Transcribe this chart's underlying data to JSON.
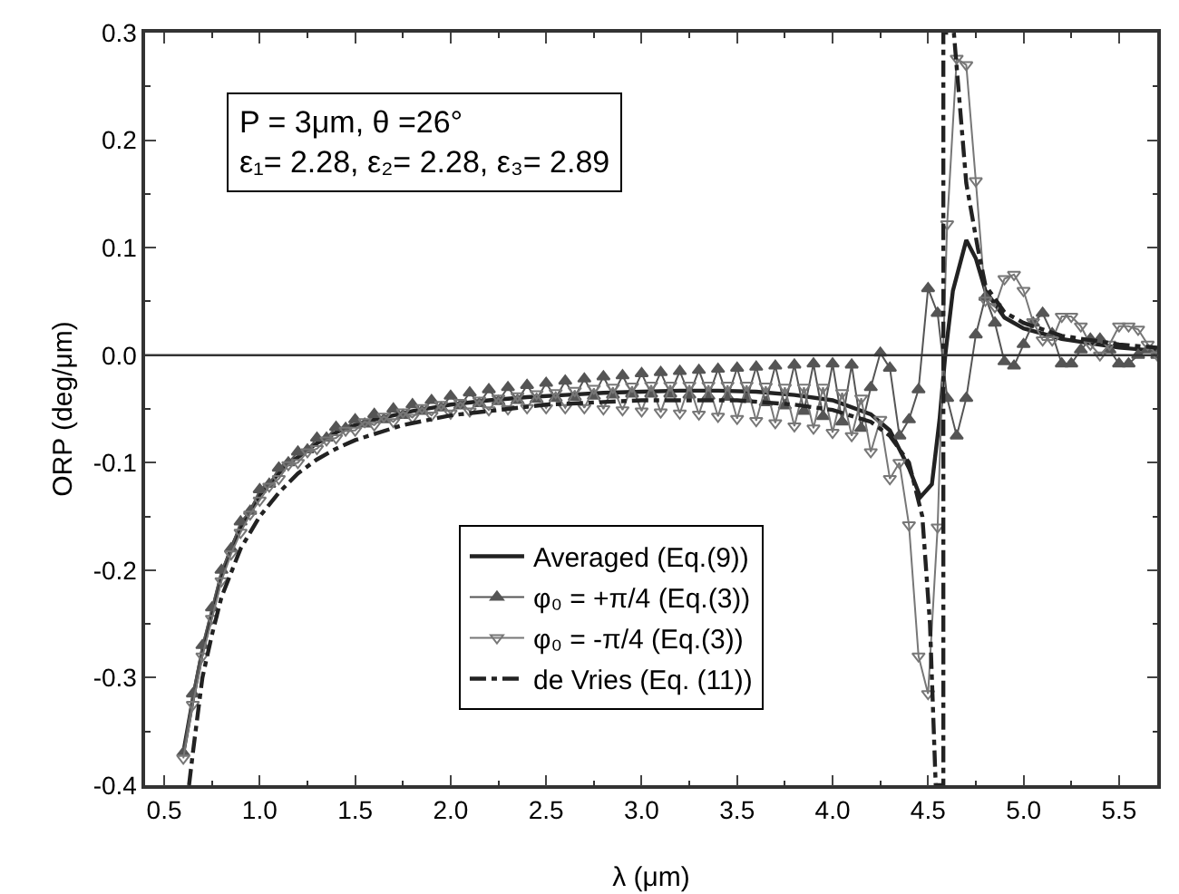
{
  "chart_data": {
    "type": "line",
    "xlabel": "λ (μm)",
    "ylabel": "ORP (deg/μm)",
    "xlim": [
      0.4,
      5.7
    ],
    "ylim": [
      -0.4,
      0.3
    ],
    "xticks": [
      {
        "value": 0.5,
        "label": "0.5"
      },
      {
        "value": 1,
        "label": "1.0"
      },
      {
        "value": 1.5,
        "label": "1.5"
      },
      {
        "value": 2,
        "label": "2.0"
      },
      {
        "value": 2.5,
        "label": "2.5"
      },
      {
        "value": 3,
        "label": "3.0"
      },
      {
        "value": 3.5,
        "label": "3.5"
      },
      {
        "value": 4,
        "label": "4.0"
      },
      {
        "value": 4.5,
        "label": "4.5"
      },
      {
        "value": 5,
        "label": "5.0"
      },
      {
        "value": 5.5,
        "label": "5.5"
      }
    ],
    "yticks": [
      {
        "value": -0.4,
        "label": "-0.4"
      },
      {
        "value": -0.3,
        "label": "-0.3"
      },
      {
        "value": -0.2,
        "label": "-0.2"
      },
      {
        "value": -0.1,
        "label": "-0.1"
      },
      {
        "value": 0,
        "label": "0.0"
      },
      {
        "value": 0.1,
        "label": "0.1"
      },
      {
        "value": 0.2,
        "label": "0.2"
      },
      {
        "value": 0.3,
        "label": "0.3"
      }
    ],
    "grid": false,
    "legend": "bottom",
    "ref_lines": [
      {
        "axis": "y",
        "value": 0,
        "label": null,
        "color": "#333333",
        "line_style": "solid"
      }
    ],
    "annotations": [
      "P = 3μm, θ =26°\nε₁= 2.28, ε₂= 2.28, ε₃= 2.89"
    ],
    "series": [
      {
        "name": "Averaged (Eq.(9))",
        "color": "#222222",
        "marker": "none",
        "line_style": "solid",
        "x": [
          0.6,
          0.65,
          0.7,
          0.75,
          0.8,
          0.85,
          0.9,
          0.95,
          1.0,
          1.05,
          1.1,
          1.15,
          1.2,
          1.25,
          1.3,
          1.35,
          1.4,
          1.45,
          1.5,
          1.6,
          1.7,
          1.8,
          1.9,
          2.0,
          2.2,
          2.4,
          2.6,
          2.8,
          3.0,
          3.2,
          3.4,
          3.6,
          3.8,
          4.0,
          4.2,
          4.3,
          4.4,
          4.46,
          4.52,
          4.56,
          4.59,
          4.63,
          4.7,
          4.75,
          4.8,
          4.9,
          5.0,
          5.2,
          5.5,
          5.7
        ],
        "values": [
          -0.37,
          -0.32,
          -0.275,
          -0.24,
          -0.205,
          -0.18,
          -0.16,
          -0.145,
          -0.13,
          -0.12,
          -0.11,
          -0.1,
          -0.095,
          -0.088,
          -0.082,
          -0.077,
          -0.072,
          -0.068,
          -0.065,
          -0.06,
          -0.056,
          -0.052,
          -0.049,
          -0.046,
          -0.042,
          -0.039,
          -0.037,
          -0.035,
          -0.034,
          -0.033,
          -0.033,
          -0.034,
          -0.037,
          -0.042,
          -0.055,
          -0.07,
          -0.105,
          -0.132,
          -0.12,
          -0.06,
          0.0,
          0.06,
          0.107,
          0.09,
          0.06,
          0.035,
          0.025,
          0.015,
          0.007,
          0.004
        ]
      },
      {
        "name": "φ₀ = +π/4 (Eq.(3))",
        "color": "#555555",
        "marker": "triangle",
        "line_style": "solid",
        "x": [
          0.6,
          0.65,
          0.7,
          0.75,
          0.8,
          0.85,
          0.9,
          0.95,
          1.0,
          1.05,
          1.1,
          1.15,
          1.2,
          1.25,
          1.3,
          1.35,
          1.4,
          1.45,
          1.5,
          1.55,
          1.6,
          1.65,
          1.7,
          1.75,
          1.8,
          1.85,
          1.9,
          1.95,
          2.0,
          2.05,
          2.1,
          2.15,
          2.2,
          2.25,
          2.3,
          2.35,
          2.4,
          2.45,
          2.5,
          2.55,
          2.6,
          2.65,
          2.7,
          2.75,
          2.8,
          2.85,
          2.9,
          2.95,
          3.0,
          3.05,
          3.1,
          3.15,
          3.2,
          3.25,
          3.3,
          3.35,
          3.4,
          3.45,
          3.5,
          3.55,
          3.6,
          3.65,
          3.7,
          3.75,
          3.8,
          3.85,
          3.9,
          3.95,
          4.0,
          4.05,
          4.1,
          4.15,
          4.2,
          4.25,
          4.3,
          4.35,
          4.4,
          4.45,
          4.5,
          4.55,
          4.6,
          4.65,
          4.7,
          4.75,
          4.8,
          4.85,
          4.9,
          4.95,
          5.0,
          5.05,
          5.1,
          5.15,
          5.2,
          5.25,
          5.3,
          5.35,
          5.4,
          5.45,
          5.5,
          5.55,
          5.6,
          5.65,
          5.7
        ],
        "values": [
          -0.37,
          -0.315,
          -0.27,
          -0.235,
          -0.2,
          -0.18,
          -0.155,
          -0.145,
          -0.125,
          -0.12,
          -0.105,
          -0.1,
          -0.09,
          -0.088,
          -0.077,
          -0.077,
          -0.067,
          -0.068,
          -0.06,
          -0.064,
          -0.055,
          -0.06,
          -0.05,
          -0.056,
          -0.046,
          -0.052,
          -0.042,
          -0.049,
          -0.038,
          -0.047,
          -0.035,
          -0.045,
          -0.032,
          -0.043,
          -0.03,
          -0.042,
          -0.028,
          -0.041,
          -0.026,
          -0.04,
          -0.024,
          -0.039,
          -0.022,
          -0.038,
          -0.02,
          -0.037,
          -0.019,
          -0.036,
          -0.017,
          -0.036,
          -0.016,
          -0.036,
          -0.015,
          -0.037,
          -0.014,
          -0.038,
          -0.013,
          -0.039,
          -0.012,
          -0.041,
          -0.011,
          -0.044,
          -0.01,
          -0.047,
          -0.009,
          -0.052,
          -0.008,
          -0.057,
          -0.008,
          -0.062,
          -0.009,
          -0.068,
          -0.03,
          0.002,
          -0.012,
          -0.075,
          -0.06,
          -0.032,
          0.062,
          0.039,
          -0.04,
          -0.075,
          -0.04,
          0.019,
          0.054,
          0.03,
          -0.006,
          -0.01,
          0.01,
          0.03,
          0.039,
          0.02,
          -0.008,
          -0.008,
          0.005,
          0.015,
          0.015,
          0.005,
          -0.008,
          -0.008,
          0.0,
          0.005,
          0.0
        ]
      },
      {
        "name": "φ₀ = -π/4 (Eq.(3))",
        "color": "#777777",
        "marker": "triangle-down",
        "line_style": "solid",
        "x": [
          0.6,
          0.65,
          0.7,
          0.75,
          0.8,
          0.85,
          0.9,
          0.95,
          1.0,
          1.05,
          1.1,
          1.15,
          1.2,
          1.25,
          1.3,
          1.35,
          1.4,
          1.45,
          1.5,
          1.55,
          1.6,
          1.65,
          1.7,
          1.75,
          1.8,
          1.85,
          1.9,
          1.95,
          2.0,
          2.05,
          2.1,
          2.15,
          2.2,
          2.25,
          2.3,
          2.35,
          2.4,
          2.45,
          2.5,
          2.55,
          2.6,
          2.65,
          2.7,
          2.75,
          2.8,
          2.85,
          2.9,
          2.95,
          3.0,
          3.05,
          3.1,
          3.15,
          3.2,
          3.25,
          3.3,
          3.35,
          3.4,
          3.45,
          3.5,
          3.55,
          3.6,
          3.65,
          3.7,
          3.75,
          3.8,
          3.85,
          3.9,
          3.95,
          4.0,
          4.05,
          4.1,
          4.15,
          4.2,
          4.25,
          4.3,
          4.35,
          4.4,
          4.45,
          4.5,
          4.55,
          4.6,
          4.65,
          4.7,
          4.75,
          4.8,
          4.85,
          4.9,
          4.95,
          5.0,
          5.05,
          5.1,
          5.15,
          5.2,
          5.25,
          5.3,
          5.35,
          5.4,
          5.45,
          5.5,
          5.55,
          5.6,
          5.65,
          5.7
        ],
        "values": [
          -0.375,
          -0.325,
          -0.28,
          -0.245,
          -0.21,
          -0.185,
          -0.165,
          -0.148,
          -0.135,
          -0.122,
          -0.115,
          -0.102,
          -0.1,
          -0.09,
          -0.087,
          -0.079,
          -0.077,
          -0.07,
          -0.07,
          -0.062,
          -0.065,
          -0.057,
          -0.062,
          -0.053,
          -0.058,
          -0.049,
          -0.056,
          -0.046,
          -0.054,
          -0.044,
          -0.052,
          -0.042,
          -0.051,
          -0.04,
          -0.05,
          -0.038,
          -0.049,
          -0.036,
          -0.049,
          -0.035,
          -0.049,
          -0.033,
          -0.049,
          -0.031,
          -0.05,
          -0.03,
          -0.051,
          -0.029,
          -0.052,
          -0.028,
          -0.053,
          -0.028,
          -0.054,
          -0.028,
          -0.055,
          -0.028,
          -0.057,
          -0.028,
          -0.059,
          -0.028,
          -0.061,
          -0.029,
          -0.063,
          -0.03,
          -0.066,
          -0.03,
          -0.068,
          -0.03,
          -0.072,
          -0.035,
          -0.075,
          -0.04,
          -0.09,
          -0.06,
          -0.115,
          -0.1,
          -0.158,
          -0.28,
          -0.315,
          -0.16,
          0.122,
          0.276,
          0.27,
          0.162,
          0.051,
          0.045,
          0.071,
          0.075,
          0.06,
          0.031,
          0.014,
          0.014,
          0.036,
          0.036,
          0.027,
          0.01,
          0.0,
          0.01,
          0.027,
          0.027,
          0.024,
          0.01,
          0.0
        ]
      },
      {
        "name": "de Vries (Eq. (11))",
        "color": "#222222",
        "marker": "none",
        "line_style": "dashdot",
        "x": [
          0.63,
          0.65,
          0.7,
          0.75,
          0.8,
          0.9,
          1.0,
          1.1,
          1.2,
          1.3,
          1.4,
          1.5,
          1.75,
          2.0,
          2.5,
          3.0,
          3.5,
          3.8,
          4.0,
          4.2,
          4.3,
          4.4,
          4.47,
          4.51,
          4.54,
          4.58,
          4.58,
          4.635,
          4.7,
          4.76,
          4.8,
          4.9,
          5.0,
          5.2,
          5.5,
          5.7
        ],
        "values": [
          -0.4,
          -0.37,
          -0.3,
          -0.26,
          -0.225,
          -0.18,
          -0.15,
          -0.128,
          -0.11,
          -0.097,
          -0.087,
          -0.079,
          -0.065,
          -0.056,
          -0.046,
          -0.042,
          -0.042,
          -0.046,
          -0.051,
          -0.062,
          -0.075,
          -0.1,
          -0.15,
          -0.25,
          -0.4,
          -0.4,
          0.3,
          0.3,
          0.16,
          0.1,
          0.065,
          0.04,
          0.03,
          0.018,
          0.01,
          0.007
        ]
      }
    ]
  }
}
